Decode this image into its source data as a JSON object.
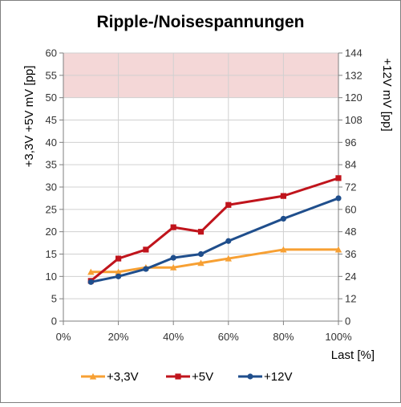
{
  "chart_data": {
    "type": "line",
    "title": "Ripple-/Noisespannungen",
    "xlabel": "Last [%]",
    "x": [
      10,
      20,
      30,
      40,
      50,
      60,
      80,
      100
    ],
    "xticks": [
      "0%",
      "20%",
      "40%",
      "60%",
      "80%",
      "100%"
    ],
    "xlim": [
      0,
      100
    ],
    "ylabel_left": "+3,3V  +5V    mV [pp]",
    "ylim_left": [
      0,
      60
    ],
    "yticks_left": [
      "0",
      "5",
      "10",
      "15",
      "20",
      "25",
      "30",
      "35",
      "40",
      "45",
      "50",
      "55",
      "60"
    ],
    "ylabel_right": "+12V    mV [pp]",
    "ylim_right": [
      0,
      144
    ],
    "yticks_right": [
      "0",
      "12",
      "24",
      "36",
      "48",
      "60",
      "72",
      "84",
      "96",
      "108",
      "120",
      "132",
      "144"
    ],
    "limit_band": {
      "axis": "left",
      "from": 50,
      "to": 60,
      "color": "#f4d7d7"
    },
    "grid": true,
    "legend_position": "bottom",
    "series": [
      {
        "name": "+3,3V",
        "axis": "left",
        "color": "#f7a033",
        "marker": "triangle",
        "values": [
          11,
          11,
          12,
          12,
          13,
          14,
          16,
          16
        ]
      },
      {
        "name": "+5V",
        "axis": "left",
        "color": "#c0141c",
        "marker": "square",
        "values": [
          9,
          14,
          16,
          21,
          20,
          26,
          28,
          32
        ]
      },
      {
        "name": "+12V",
        "axis": "right",
        "color": "#1f4e8c",
        "marker": "circle",
        "values": [
          21,
          24,
          28,
          34,
          36,
          43,
          55,
          66
        ]
      }
    ]
  }
}
